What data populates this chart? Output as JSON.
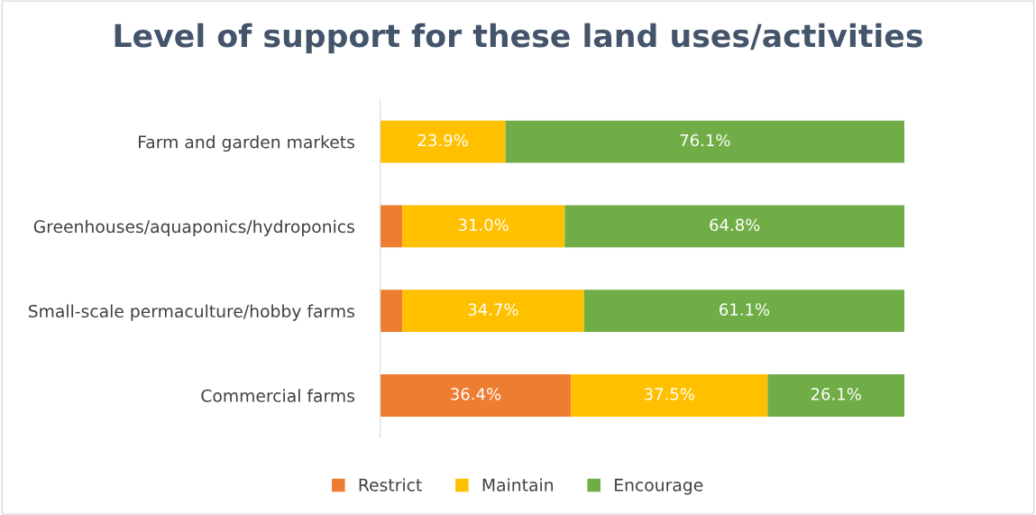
{
  "chart_data": {
    "type": "bar",
    "orientation": "horizontal",
    "stacked": true,
    "title": "Level of support for these land uses/activities",
    "categories": [
      "Farm and garden markets",
      "Greenhouses/aquaponics/hydroponics",
      "Small-scale permaculture/hobby farms",
      "Commercial farms"
    ],
    "series": [
      {
        "name": "Restrict",
        "color": "#ed7d31",
        "values": [
          0,
          4.2,
          4.2,
          36.4
        ],
        "value_labels": [
          null,
          null,
          null,
          "36.4%"
        ]
      },
      {
        "name": "Maintain",
        "color": "#ffc000",
        "values": [
          23.9,
          31.0,
          34.7,
          37.5
        ],
        "value_labels": [
          "23.9%",
          "31.0%",
          "34.7%",
          "37.5%"
        ]
      },
      {
        "name": "Encourage",
        "color": "#70ad47",
        "values": [
          76.1,
          64.8,
          61.1,
          26.1
        ],
        "value_labels": [
          "76.1%",
          "64.8%",
          "61.1%",
          "26.1%"
        ]
      }
    ],
    "xlim": [
      0,
      100
    ],
    "tick_labels": "y",
    "grid": false,
    "legend": "bottom"
  }
}
